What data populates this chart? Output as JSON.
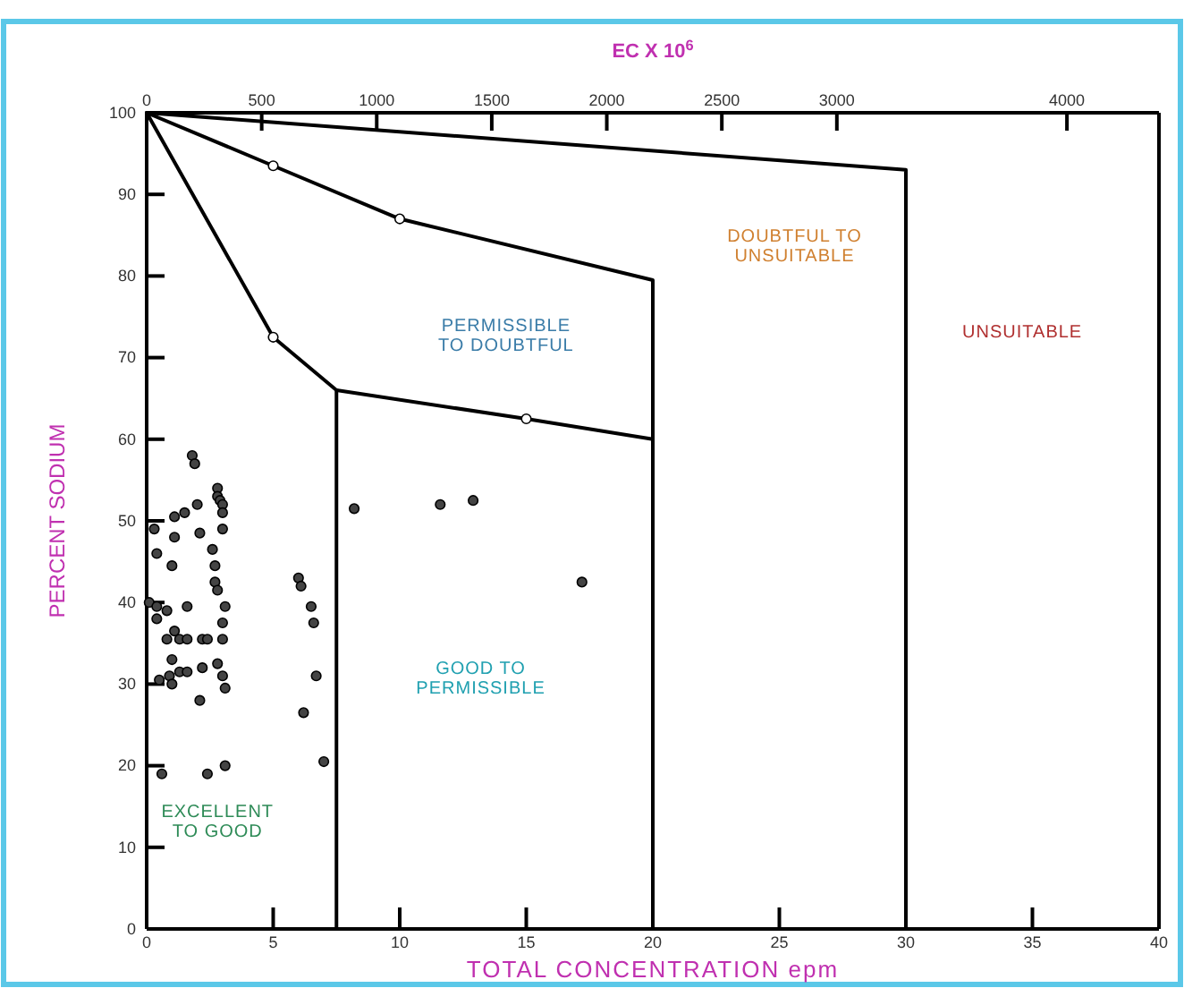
{
  "chart_data": {
    "type": "scatter",
    "x2label": "EC X 10$^{6}$",
    "xlabel": "TOTAL CONCENTRATION epm",
    "ylabel": "PERCENT SODIUM",
    "xlim": [
      0,
      40
    ],
    "xticks": [
      0,
      5,
      10,
      15,
      20,
      25,
      30,
      35,
      40
    ],
    "x2lim": [
      0,
      4400
    ],
    "x2ticks": [
      0,
      500,
      1000,
      1500,
      2000,
      2500,
      3000,
      4000
    ],
    "ylim": [
      0,
      100
    ],
    "yticks": [
      0,
      10,
      20,
      30,
      40,
      50,
      60,
      70,
      80,
      90,
      100
    ],
    "grid": false,
    "series": [
      {
        "type": "line",
        "color": "#000000",
        "marker": "none",
        "x": [
          0,
          30,
          30
        ],
        "values": [
          100,
          93,
          0
        ]
      },
      {
        "type": "line",
        "color": "#000000",
        "marker": "none",
        "x": [
          0,
          5,
          10,
          20,
          20
        ],
        "values": [
          100,
          93.5,
          87,
          79.5,
          0
        ]
      },
      {
        "type": "line",
        "color": "#000000",
        "marker": "none",
        "x": [
          0,
          5,
          7.5,
          15,
          20,
          20
        ],
        "values": [
          100,
          72.5,
          66,
          62.5,
          60,
          0
        ]
      },
      {
        "type": "line",
        "color": "#000000",
        "marker": "none",
        "x": [
          7.5,
          7.5
        ],
        "values": [
          66,
          0
        ]
      },
      {
        "type": "scatter",
        "color": "#ffffff",
        "marker": "circle",
        "x": [
          5,
          10,
          5,
          15
        ],
        "values": [
          93.5,
          87,
          72.5,
          62.5
        ]
      },
      {
        "color": "#444444",
        "marker": "circle",
        "x": [
          1.8,
          1.9,
          2.8,
          2.8,
          2.9,
          3.0,
          3.0,
          2.0,
          1.5,
          1.1,
          0.3,
          1.1,
          2.1,
          3.0,
          0.4,
          1.0,
          2.6,
          2.7,
          2.7,
          2.8,
          3.1,
          3.0,
          0.1,
          0.4,
          0.8,
          0.4,
          1.6,
          1.1,
          0.8,
          1.3,
          1.6,
          2.2,
          2.4,
          3.0,
          1.0,
          0.9,
          1.3,
          0.5,
          1.0,
          1.6,
          2.2,
          2.8,
          3.0,
          3.1,
          2.1,
          0.6,
          2.4,
          3.1,
          6.0,
          6.1,
          6.5,
          6.6,
          6.7,
          6.2,
          7.0,
          8.2,
          11.6,
          12.9,
          17.2
        ],
        "values": [
          58,
          57,
          54,
          53,
          52.5,
          52,
          51,
          52,
          51,
          50.5,
          49,
          48,
          48.5,
          49,
          46,
          44.5,
          46.5,
          44.5,
          42.5,
          41.5,
          39.5,
          37.5,
          40,
          39.5,
          39,
          38,
          39.5,
          36.5,
          35.5,
          35.5,
          35.5,
          35.5,
          35.5,
          35.5,
          33,
          31,
          31.5,
          30.5,
          30,
          31.5,
          32,
          32.5,
          31,
          29.5,
          28,
          19,
          19,
          20,
          43,
          42,
          39.5,
          37.5,
          31,
          26.5,
          20.5,
          51.5,
          52,
          52.5,
          42.5
        ]
      }
    ],
    "annotations": [
      "EXCELLENT\nTO GOOD",
      "GOOD TO\nPERMISSIBLE",
      "PERMISSIBLE\nTO DOUBTFUL",
      "DOUBTFUL TO\nUNSUITABLE",
      "UNSUITABLE"
    ]
  }
}
